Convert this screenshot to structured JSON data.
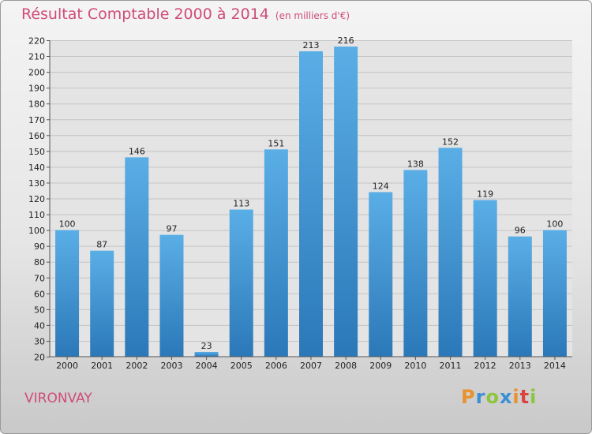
{
  "header": {
    "title": "Résultat Comptable 2000 à 2014",
    "subtitle": "(en milliers d'€)"
  },
  "footer": {
    "city": "VIRONVAY",
    "logo": [
      "P",
      "r",
      "o",
      "x",
      "i",
      "t",
      "i"
    ]
  },
  "colors": {
    "accent": "#cf4c79",
    "bar_top": "#5aaee6",
    "bar_bottom": "#2b78b8"
  },
  "chart_data": {
    "type": "bar",
    "title": "Résultat Comptable 2000 à 2014",
    "subtitle": "(en milliers d'€)",
    "categories": [
      "2000",
      "2001",
      "2002",
      "2003",
      "2004",
      "2005",
      "2006",
      "2007",
      "2008",
      "2009",
      "2010",
      "2011",
      "2012",
      "2013",
      "2014"
    ],
    "values": [
      100,
      87,
      146,
      97,
      23,
      113,
      151,
      213,
      216,
      124,
      138,
      152,
      119,
      96,
      100
    ],
    "ylim": [
      20,
      220
    ],
    "yticks": [
      20,
      30,
      40,
      50,
      60,
      70,
      80,
      90,
      100,
      110,
      120,
      130,
      140,
      150,
      160,
      170,
      180,
      190,
      200,
      210,
      220
    ],
    "grid": true,
    "xlabel": "",
    "ylabel": ""
  }
}
